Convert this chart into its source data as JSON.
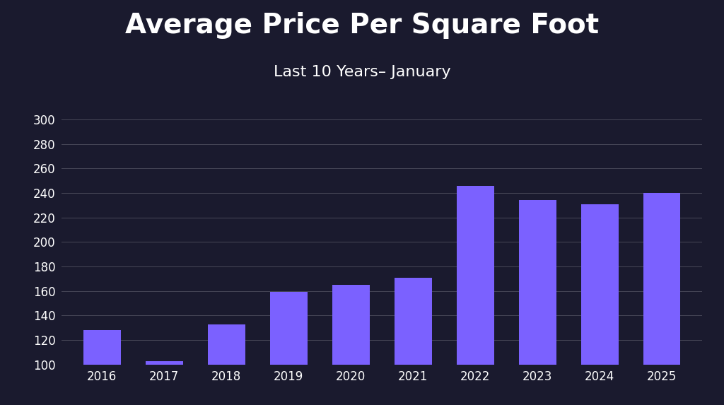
{
  "title": "Average Price Per Square Foot",
  "subtitle": "Last 10 Years– January",
  "years": [
    2016,
    2017,
    2018,
    2019,
    2020,
    2021,
    2022,
    2023,
    2024,
    2025
  ],
  "values": [
    128,
    103,
    133,
    159,
    165,
    171,
    246,
    234,
    231,
    240
  ],
  "bar_color": "#7B61FF",
  "ylim_min": 100,
  "ylim_max": 305,
  "yticks": [
    100,
    120,
    140,
    160,
    180,
    200,
    220,
    240,
    260,
    280,
    300
  ],
  "title_color": "#FFFFFF",
  "subtitle_color": "#FFFFFF",
  "tick_color": "#FFFFFF",
  "grid_color": "#FFFFFF",
  "title_fontsize": 28,
  "subtitle_fontsize": 16,
  "tick_fontsize": 12,
  "bg_color": "#1a1a2e",
  "panel_alpha": 0.55
}
